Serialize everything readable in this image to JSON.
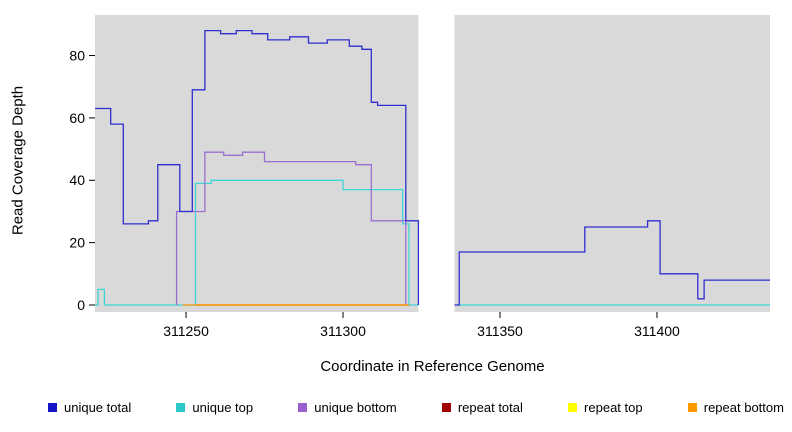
{
  "figure": {
    "x_axis_label": "Coordinate in Reference Genome",
    "y_axis_label": "Read Coverage Depth"
  },
  "chart_data": {
    "type": "line",
    "title": "",
    "xlabel": "Coordinate in Reference Genome",
    "ylabel": "Read Coverage Depth",
    "xlim": [
      311221,
      311436
    ],
    "ylim": [
      0,
      93
    ],
    "x_ticks": [
      311250,
      311300,
      311350,
      311400
    ],
    "y_ticks": [
      0,
      20,
      40,
      60,
      80
    ],
    "grid": false,
    "panel_background": "#d9d9d9",
    "gap_band": {
      "x_start": 311324,
      "x_end": 311335.5,
      "color": "#ffffff"
    },
    "legend_position": "bottom",
    "series": [
      {
        "name": "repeat total",
        "color": "#a00000",
        "segments": [
          [
            [
              311253,
              0
            ],
            [
              311321,
              0
            ]
          ]
        ]
      },
      {
        "name": "repeat top",
        "color": "#ffff00",
        "segments": [
          [
            [
              311253,
              0
            ],
            [
              311321,
              0
            ]
          ]
        ]
      },
      {
        "name": "unique top",
        "color": "#3fd4d4",
        "segments": [
          [
            [
              311221,
              0
            ],
            [
              311222,
              0
            ],
            [
              311222,
              5
            ],
            [
              311224,
              5
            ],
            [
              311224,
              0
            ],
            [
              311253,
              0
            ],
            [
              311253,
              39
            ],
            [
              311258,
              39
            ],
            [
              311258,
              40
            ],
            [
              311300,
              40
            ],
            [
              311300,
              37
            ],
            [
              311319,
              37
            ],
            [
              311319,
              26
            ],
            [
              311321,
              26
            ],
            [
              311321,
              0
            ],
            [
              311324,
              0
            ]
          ],
          [
            [
              311335.5,
              0
            ],
            [
              311436,
              0
            ]
          ]
        ]
      },
      {
        "name": "unique bottom",
        "color": "#9a6fd0",
        "segments": [
          [
            [
              311247,
              0
            ],
            [
              311247,
              30
            ],
            [
              311256,
              30
            ],
            [
              311256,
              49
            ],
            [
              311262,
              49
            ],
            [
              311262,
              48
            ],
            [
              311268,
              48
            ],
            [
              311268,
              49
            ],
            [
              311275,
              49
            ],
            [
              311275,
              46
            ],
            [
              311304,
              46
            ],
            [
              311304,
              45
            ],
            [
              311309,
              45
            ],
            [
              311309,
              27
            ],
            [
              311320,
              27
            ],
            [
              311320,
              0
            ]
          ]
        ]
      },
      {
        "name": "repeat bottom",
        "color": "#ff9900",
        "segments": [
          [
            [
              311249,
              0
            ],
            [
              311321,
              0
            ]
          ]
        ]
      },
      {
        "name": "unique total",
        "color": "#2e2ed0",
        "segments": [
          [
            [
              311221,
              63
            ],
            [
              311226,
              63
            ],
            [
              311226,
              58
            ],
            [
              311230,
              58
            ],
            [
              311230,
              26
            ],
            [
              311238,
              26
            ],
            [
              311238,
              27
            ],
            [
              311241,
              27
            ],
            [
              311241,
              45
            ],
            [
              311248,
              45
            ],
            [
              311248,
              30
            ],
            [
              311252,
              30
            ],
            [
              311252,
              69
            ],
            [
              311256,
              69
            ],
            [
              311256,
              88
            ],
            [
              311261,
              88
            ],
            [
              311261,
              87
            ],
            [
              311266,
              87
            ],
            [
              311266,
              88
            ],
            [
              311271,
              88
            ],
            [
              311271,
              87
            ],
            [
              311276,
              87
            ],
            [
              311276,
              85
            ],
            [
              311283,
              85
            ],
            [
              311283,
              86
            ],
            [
              311289,
              86
            ],
            [
              311289,
              84
            ],
            [
              311295,
              84
            ],
            [
              311295,
              85
            ],
            [
              311302,
              85
            ],
            [
              311302,
              83
            ],
            [
              311306,
              83
            ],
            [
              311306,
              82
            ],
            [
              311309,
              82
            ],
            [
              311309,
              65
            ],
            [
              311311,
              65
            ],
            [
              311311,
              64
            ],
            [
              311320,
              64
            ],
            [
              311320,
              27
            ],
            [
              311324,
              27
            ],
            [
              311324,
              0
            ]
          ],
          [
            [
              311335.5,
              0
            ],
            [
              311337,
              0
            ],
            [
              311337,
              17
            ],
            [
              311377,
              17
            ],
            [
              311377,
              25
            ],
            [
              311397,
              25
            ],
            [
              311397,
              27
            ],
            [
              311401,
              27
            ],
            [
              311401,
              10
            ],
            [
              311413,
              10
            ],
            [
              311413,
              2
            ],
            [
              311415,
              2
            ],
            [
              311415,
              8
            ],
            [
              311436,
              8
            ]
          ]
        ]
      }
    ],
    "legend": [
      {
        "label": "unique total",
        "color": "#1414c8"
      },
      {
        "label": "unique top",
        "color": "#2fc8c8"
      },
      {
        "label": "unique bottom",
        "color": "#9a5fd0"
      },
      {
        "label": "repeat total",
        "color": "#a00000"
      },
      {
        "label": "repeat top",
        "color": "#ffff00"
      },
      {
        "label": "repeat bottom",
        "color": "#ff9900"
      }
    ]
  }
}
